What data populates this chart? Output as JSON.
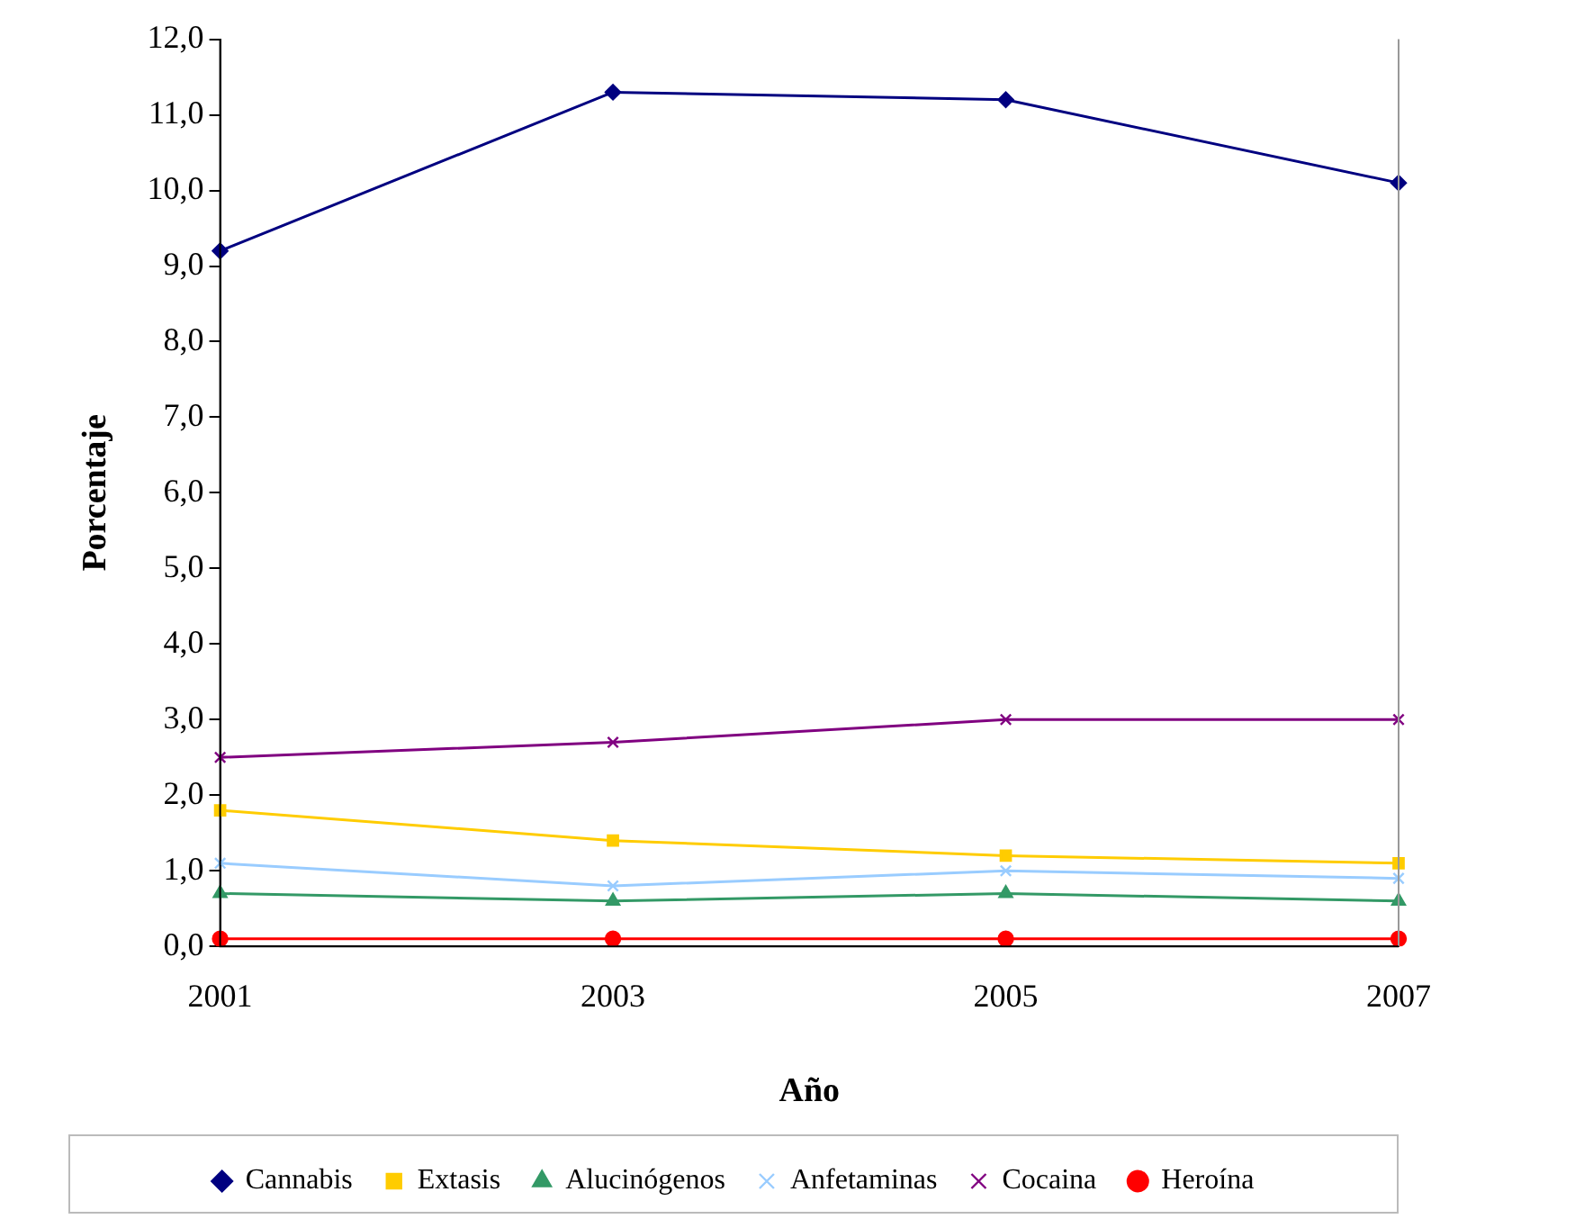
{
  "chart_data": {
    "type": "line",
    "xlabel": "Año",
    "ylabel": "Porcentaje",
    "categories": [
      "2001",
      "2003",
      "2005",
      "2007"
    ],
    "ylim": [
      0,
      12
    ],
    "yticks": [
      {
        "value": 0,
        "label": "0,0"
      },
      {
        "value": 1,
        "label": "1,0"
      },
      {
        "value": 2,
        "label": "2,0"
      },
      {
        "value": 3,
        "label": "3,0"
      },
      {
        "value": 4,
        "label": "4,0"
      },
      {
        "value": 5,
        "label": "5,0"
      },
      {
        "value": 6,
        "label": "6,0"
      },
      {
        "value": 7,
        "label": "7,0"
      },
      {
        "value": 8,
        "label": "8,0"
      },
      {
        "value": 9,
        "label": "9,0"
      },
      {
        "value": 10,
        "label": "10,0"
      },
      {
        "value": 11,
        "label": "11,0"
      },
      {
        "value": 12,
        "label": "12,0"
      }
    ],
    "grid": false,
    "legend": "bottom",
    "line_style": "solid",
    "series": [
      {
        "name": "Cannabis",
        "color": "#000080",
        "marker": "diamond",
        "values": [
          9.2,
          11.3,
          11.2,
          10.1
        ]
      },
      {
        "name": "Extasis",
        "color": "#ffcc00",
        "marker": "square",
        "values": [
          1.8,
          1.4,
          1.2,
          1.1
        ]
      },
      {
        "name": "Alucinógenos",
        "color": "#339966",
        "marker": "triangle",
        "values": [
          0.7,
          0.6,
          0.7,
          0.6
        ]
      },
      {
        "name": "Anfetaminas",
        "color": "#99ccff",
        "marker": "cross",
        "values": [
          1.1,
          0.8,
          1.0,
          0.9
        ]
      },
      {
        "name": "Cocaina",
        "color": "#800080",
        "marker": "cross",
        "values": [
          2.5,
          2.7,
          3.0,
          3.0
        ]
      },
      {
        "name": "Heroína",
        "color": "#ff0000",
        "marker": "circle",
        "values": [
          0.1,
          0.1,
          0.1,
          0.1
        ]
      }
    ]
  }
}
